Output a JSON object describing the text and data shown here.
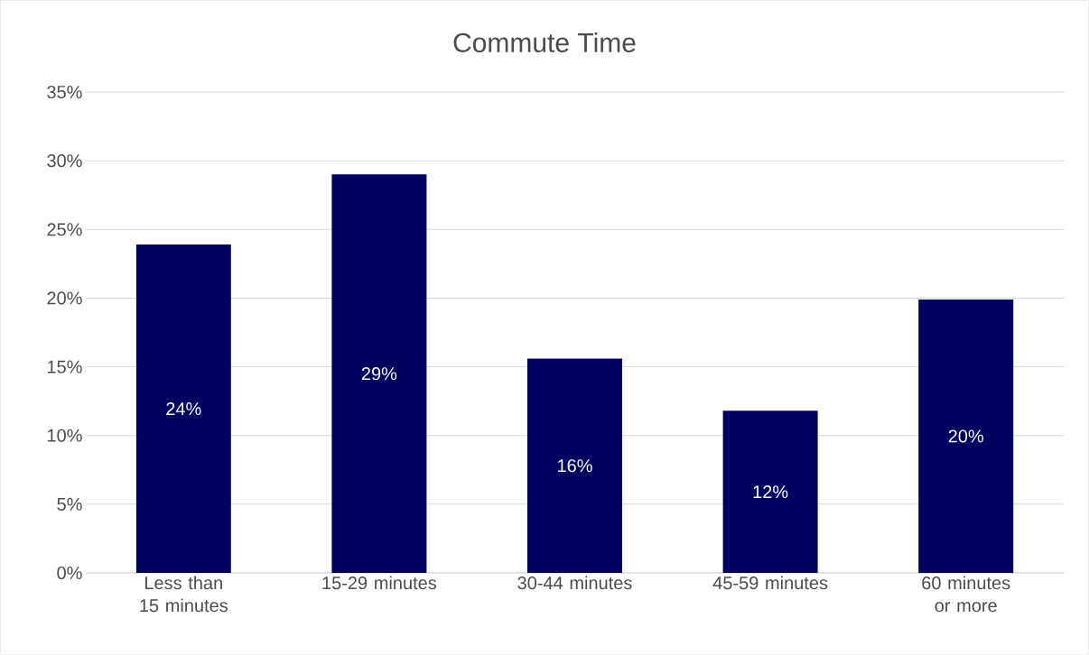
{
  "chart_data": {
    "type": "bar",
    "title": "Commute Time",
    "categories": [
      "Less than 15 minutes",
      "15-29 minutes",
      "30-44 minutes",
      "45-59 minutes",
      "60 minutes or more"
    ],
    "values": [
      23.9,
      29.0,
      15.6,
      11.8,
      19.9
    ],
    "value_labels": [
      "24%",
      "29%",
      "16%",
      "12%",
      "20%"
    ],
    "color": "#00005e",
    "ylim": [
      0,
      35
    ],
    "yticks": [
      {
        "value": 0,
        "label": "0%"
      },
      {
        "value": 5,
        "label": "5%"
      },
      {
        "value": 10,
        "label": "10%"
      },
      {
        "value": 15,
        "label": "15%"
      },
      {
        "value": 20,
        "label": "20%"
      },
      {
        "value": 25,
        "label": "25%"
      },
      {
        "value": 30,
        "label": "30%"
      },
      {
        "value": 35,
        "label": "35%"
      }
    ],
    "grid": "y",
    "legend": false
  }
}
